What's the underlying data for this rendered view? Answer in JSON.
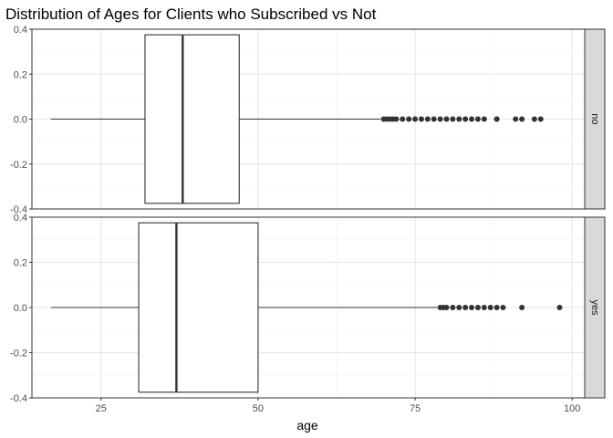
{
  "chart_data": {
    "type": "boxplot",
    "title": "Distribution of Ages for Clients who Subscribed vs Not",
    "xlabel": "age",
    "ylabel": "",
    "xlim": [
      14,
      102
    ],
    "ylim": [
      -0.4,
      0.4
    ],
    "x_ticks": [
      25,
      50,
      75,
      100
    ],
    "y_ticks": [
      0.4,
      0.2,
      0.0,
      -0.2,
      -0.4
    ],
    "y_tick_labels": [
      "0.4",
      "0.2",
      "0.0",
      "-0.2",
      "-0.4"
    ],
    "grid": true,
    "orientation": "horizontal",
    "facets": [
      {
        "label": "no",
        "whisker_low": 17,
        "q1": 32,
        "median": 38,
        "q3": 47,
        "whisker_high": 69.5,
        "outliers": [
          70,
          70.5,
          71,
          71.5,
          72,
          73,
          74,
          75,
          76,
          77,
          78,
          79,
          80,
          81,
          82,
          83,
          84,
          85,
          86,
          88,
          88,
          91,
          92,
          94,
          95
        ]
      },
      {
        "label": "yes",
        "whisker_low": 17,
        "q1": 31,
        "median": 37,
        "q3": 50,
        "whisker_high": 78.5,
        "outliers": [
          79,
          79.5,
          80,
          81,
          82,
          83,
          84,
          85,
          86,
          87,
          88,
          89,
          92,
          98
        ]
      }
    ]
  }
}
